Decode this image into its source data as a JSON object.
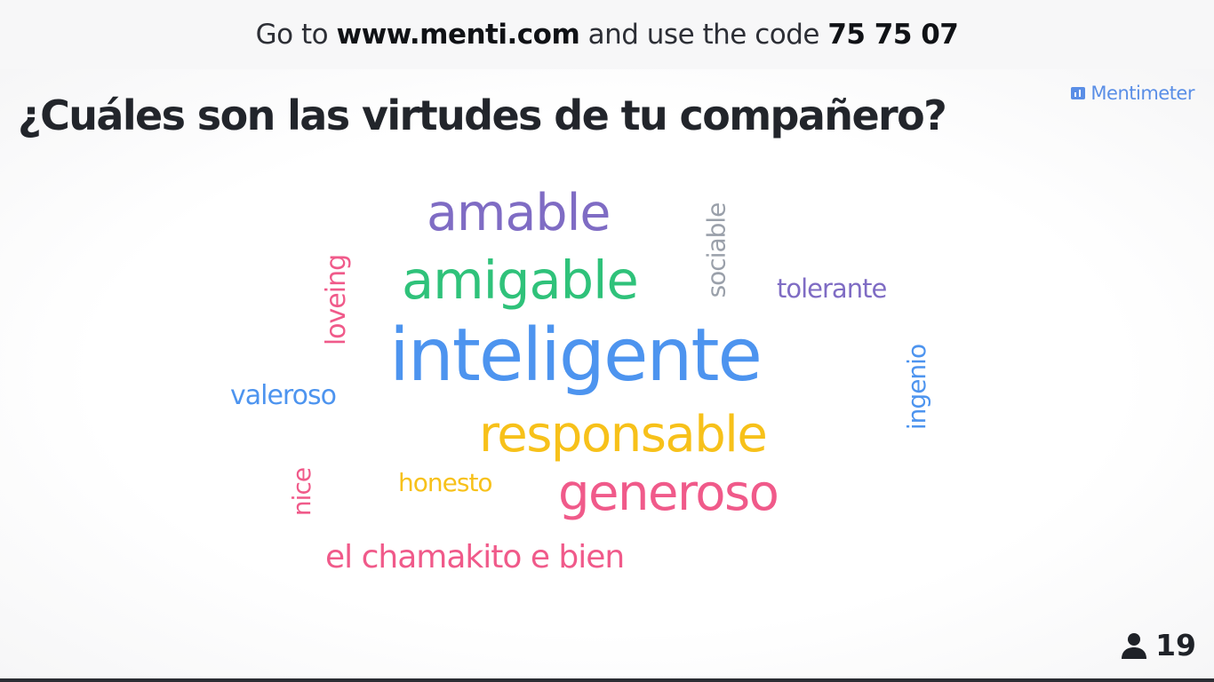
{
  "banner": {
    "prefix": "Go to",
    "url": "www.menti.com",
    "middle": "and use the code",
    "code": "75 75 07"
  },
  "question": "¿Cuáles son las virtudes de tu compañero?",
  "brand": {
    "name": "Mentimeter",
    "icon": "mentimeter-logo-icon",
    "color": "#5a8ee6"
  },
  "wordcloud": {
    "words": [
      {
        "text": "amable",
        "color": "#7f6cc4"
      },
      {
        "text": "amigable",
        "color": "#2fc27a"
      },
      {
        "text": "sociable",
        "color": "#9aa0aa"
      },
      {
        "text": "tolerante",
        "color": "#7f6cc4"
      },
      {
        "text": "loveing",
        "color": "#f05a8a"
      },
      {
        "text": "inteligente",
        "color": "#4d94ef"
      },
      {
        "text": "ingenio",
        "color": "#4d94ef"
      },
      {
        "text": "valeroso",
        "color": "#4d94ef"
      },
      {
        "text": "responsable",
        "color": "#f7c11a"
      },
      {
        "text": "nice",
        "color": "#f05a8a"
      },
      {
        "text": "honesto",
        "color": "#f7c11a"
      },
      {
        "text": "generoso",
        "color": "#f05a8a"
      },
      {
        "text": "el chamakito e bien",
        "color": "#f05a8a"
      }
    ]
  },
  "participants": {
    "icon": "person-icon",
    "count": "19"
  }
}
